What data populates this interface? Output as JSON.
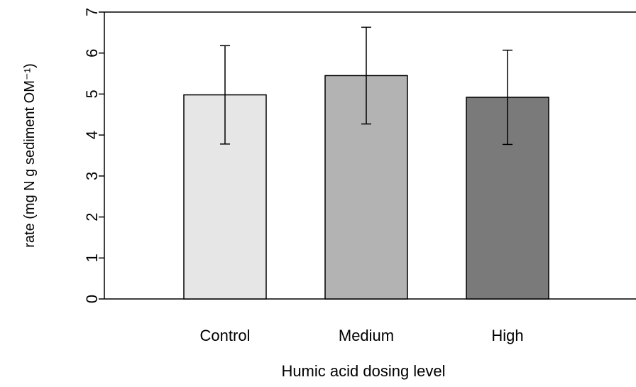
{
  "chart_data": {
    "type": "bar",
    "x_label": "Humic acid dosing level",
    "y_label": "rate (mg N g sediment OM⁻¹)",
    "categories": [
      "Control",
      "Medium",
      "High"
    ],
    "values": [
      4.98,
      5.45,
      4.92
    ],
    "errors": [
      1.2,
      1.18,
      1.15
    ],
    "colors": [
      "#e6e6e6",
      "#b3b3b3",
      "#7a7a7a"
    ],
    "ylim": [
      0,
      7
    ],
    "yticks": [
      0,
      1,
      2,
      3,
      4,
      5,
      6,
      7
    ]
  }
}
